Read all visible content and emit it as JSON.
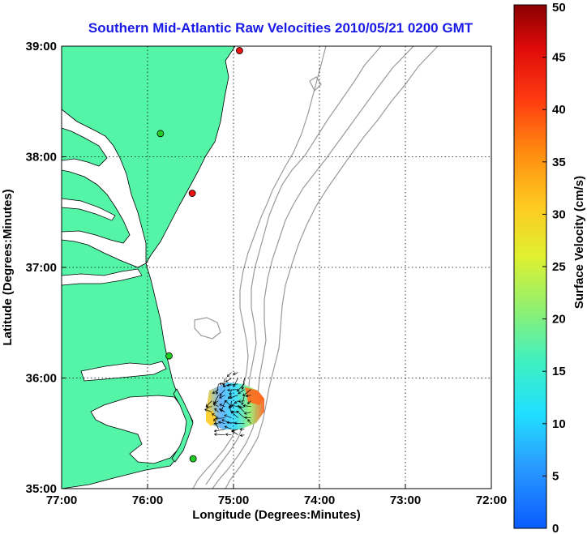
{
  "title": "Southern Mid-Atlantic Raw Velocities 2010/05/21 0200 GMT",
  "xlabel": "Longitude (Degrees:Minutes)",
  "ylabel": "Latitude (Degrees:Minutes)",
  "colorbar_label": "Surface Velocity (cm/s)",
  "colors": {
    "land": "#55f5a8",
    "water": "#ffffff",
    "coast": "#000000",
    "bathymetry": "#9a9a9a",
    "grid": "#000000",
    "station_green": "#22cc22",
    "station_red": "#ee1111",
    "title": "#1a1ae6"
  },
  "chart_data": {
    "type": "map",
    "x_ticks": [
      "77:00",
      "76:00",
      "75:00",
      "74:00",
      "73:00",
      "72:00"
    ],
    "x_tick_values": [
      -77,
      -76,
      -75,
      -74,
      -73,
      -72
    ],
    "y_ticks": [
      "39:00",
      "38:00",
      "37:00",
      "36:00",
      "35:00"
    ],
    "y_tick_values": [
      39,
      38,
      37,
      36,
      35
    ],
    "xlim": [
      -77,
      -72
    ],
    "ylim": [
      35,
      39
    ],
    "grid": true,
    "grid_style": "dotted",
    "colorbar": {
      "min": 0,
      "max": 50,
      "ticks": [
        "50",
        "45",
        "40",
        "35",
        "30",
        "25",
        "20",
        "15",
        "10",
        "5",
        "0"
      ],
      "tick_values": [
        50,
        45,
        40,
        35,
        30,
        25,
        20,
        15,
        10,
        5,
        0
      ]
    },
    "stations": [
      {
        "lon": -74.93,
        "lat": 38.96,
        "status": "red"
      },
      {
        "lon": -75.85,
        "lat": 38.21,
        "status": "green"
      },
      {
        "lon": -75.48,
        "lat": 37.67,
        "status": "red"
      },
      {
        "lon": -75.75,
        "lat": 36.2,
        "status": "green"
      },
      {
        "lon": -75.47,
        "lat": 35.27,
        "status": "green"
      }
    ],
    "velocity_field_extent": {
      "lon": [
        -75.25,
        -74.75
      ],
      "lat": [
        35.45,
        36.05
      ]
    }
  }
}
